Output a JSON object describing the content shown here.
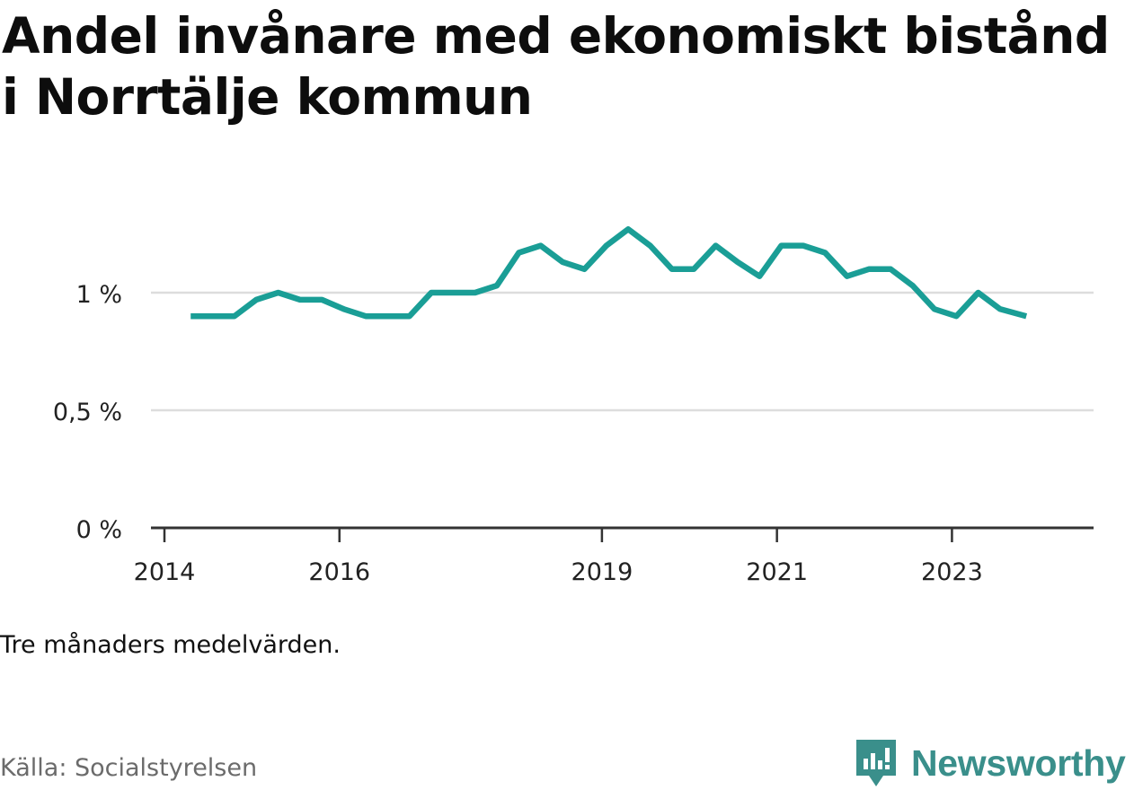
{
  "title": "Andel invånare med ekonomiskt bistånd i Norrtälje kommun",
  "note": "Tre månaders medelvärden.",
  "source": "Källa: Socialstyrelsen",
  "brand": "Newsworthy",
  "colors": {
    "line": "#1a9e96",
    "grid": "#dddddd",
    "axis": "#333333",
    "brand": "#3a8f8b"
  },
  "chart_data": {
    "type": "line",
    "x_tick_labels": [
      "2014",
      "2016",
      "2019",
      "2021",
      "2023"
    ],
    "y_tick_labels": [
      "0 %",
      "0,5 %",
      "1 %"
    ],
    "y_ticks": [
      0,
      0.5,
      1
    ],
    "ylim": [
      0,
      1.3
    ],
    "xlim": [
      2014,
      2024.3
    ],
    "grid": true,
    "series": [
      {
        "x": [
          2014.3,
          2014.55,
          2014.8,
          2015.05,
          2015.3,
          2015.55,
          2015.8,
          2016.05,
          2016.3,
          2016.55,
          2016.8,
          2017.05,
          2017.3,
          2017.55,
          2017.8,
          2018.05,
          2018.3,
          2018.55,
          2018.8,
          2019.05,
          2019.3,
          2019.55,
          2019.8,
          2020.05,
          2020.3,
          2020.55,
          2020.8,
          2021.05,
          2021.3,
          2021.55,
          2021.8,
          2022.05,
          2022.3,
          2022.55,
          2022.8,
          2023.05,
          2023.3,
          2023.55,
          2023.85
        ],
        "values": [
          0.9,
          0.9,
          0.9,
          0.97,
          1.0,
          0.97,
          0.97,
          0.93,
          0.9,
          0.9,
          0.9,
          1.0,
          1.0,
          1.0,
          1.03,
          1.17,
          1.2,
          1.13,
          1.1,
          1.2,
          1.27,
          1.2,
          1.1,
          1.1,
          1.2,
          1.13,
          1.07,
          1.2,
          1.2,
          1.17,
          1.07,
          1.1,
          1.1,
          1.03,
          0.93,
          0.9,
          1.0,
          0.93,
          0.9
        ]
      }
    ]
  }
}
